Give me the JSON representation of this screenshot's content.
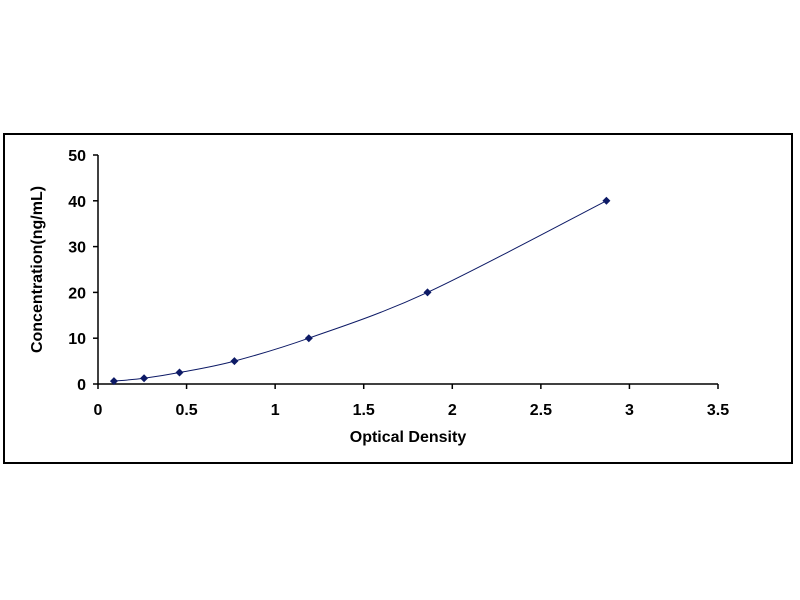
{
  "chart_data": {
    "type": "scatter",
    "title": "",
    "xlabel": "Optical Density",
    "ylabel": "Concentration(ng/mL)",
    "xlim": [
      0,
      3.5
    ],
    "ylim": [
      0,
      50
    ],
    "x_ticks": [
      "0",
      "0.5",
      "1",
      "1.5",
      "2",
      "2.5",
      "3",
      "3.5"
    ],
    "y_ticks": [
      "0",
      "10",
      "20",
      "30",
      "40",
      "50"
    ],
    "grid": false,
    "legend": "none",
    "marker": "diamond",
    "colors": {
      "marker": "#0d1a66",
      "curve": "#0d1a66",
      "axis": "#000000"
    },
    "series": [
      {
        "x": [
          0.09,
          0.26,
          0.46,
          0.77,
          1.19,
          1.86,
          2.87
        ],
        "y": [
          0.625,
          1.25,
          2.5,
          5,
          10,
          20,
          40
        ],
        "trendline": "smooth"
      }
    ]
  }
}
